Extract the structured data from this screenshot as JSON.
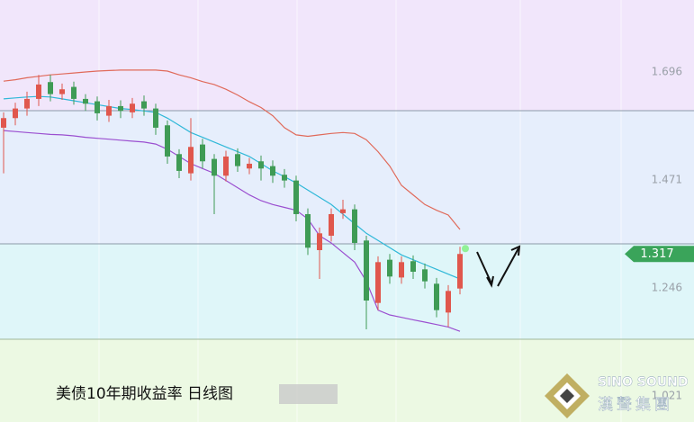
{
  "chart_data": {
    "type": "candlestick",
    "title": "美债10年期收益率 日线图",
    "open": [
      1.58,
      1.6,
      1.62,
      1.64,
      1.675,
      1.65,
      1.665,
      1.64,
      1.635,
      1.605,
      1.625,
      1.612,
      1.635,
      1.62,
      1.585,
      1.525,
      1.485,
      1.545,
      1.515,
      1.48,
      1.525,
      1.495,
      1.51,
      1.5,
      1.482,
      1.47,
      1.4,
      1.325,
      1.355,
      1.402,
      1.41,
      1.345,
      1.215,
      1.305,
      1.268,
      1.302,
      1.285,
      1.255,
      1.195,
      1.245
    ],
    "high": [
      1.612,
      1.632,
      1.655,
      1.69,
      1.69,
      1.672,
      1.676,
      1.65,
      1.645,
      1.638,
      1.637,
      1.642,
      1.647,
      1.63,
      1.595,
      1.535,
      1.6,
      1.557,
      1.525,
      1.532,
      1.537,
      1.517,
      1.522,
      1.512,
      1.494,
      1.48,
      1.412,
      1.372,
      1.412,
      1.43,
      1.42,
      1.355,
      1.312,
      1.317,
      1.312,
      1.314,
      1.297,
      1.267,
      1.252,
      1.332
    ],
    "low": [
      1.485,
      1.585,
      1.605,
      1.625,
      1.635,
      1.638,
      1.628,
      1.615,
      1.595,
      1.592,
      1.6,
      1.6,
      1.605,
      1.565,
      1.505,
      1.475,
      1.47,
      1.495,
      1.4,
      1.468,
      1.488,
      1.483,
      1.47,
      1.465,
      1.455,
      1.385,
      1.315,
      1.265,
      1.343,
      1.39,
      1.325,
      1.16,
      1.2,
      1.255,
      1.255,
      1.265,
      1.245,
      1.185,
      1.165,
      1.233
    ],
    "close": [
      1.6,
      1.62,
      1.64,
      1.67,
      1.65,
      1.66,
      1.64,
      1.63,
      1.61,
      1.625,
      1.615,
      1.63,
      1.62,
      1.58,
      1.52,
      1.49,
      1.54,
      1.51,
      1.48,
      1.52,
      1.5,
      1.505,
      1.495,
      1.48,
      1.47,
      1.4,
      1.33,
      1.36,
      1.4,
      1.41,
      1.34,
      1.22,
      1.3,
      1.27,
      1.3,
      1.28,
      1.26,
      1.2,
      1.24,
      1.317
    ],
    "up_color": "#e0574d",
    "down_color": "#3f9b55",
    "lines": [
      {
        "color": "#e06a5a",
        "values": [
          1.677,
          1.68,
          1.684,
          1.687,
          1.69,
          1.692,
          1.694,
          1.696,
          1.698,
          1.699,
          1.7,
          1.7,
          1.7,
          1.7,
          1.698,
          1.69,
          1.684,
          1.676,
          1.67,
          1.66,
          1.648,
          1.634,
          1.622,
          1.605,
          1.58,
          1.565,
          1.562,
          1.565,
          1.568,
          1.57,
          1.568,
          1.555,
          1.53,
          1.5,
          1.46,
          1.44,
          1.42,
          1.408,
          1.398,
          1.368
        ]
      },
      {
        "color": "#9b4fd0",
        "values": [
          1.574,
          1.572,
          1.57,
          1.568,
          1.566,
          1.565,
          1.563,
          1.56,
          1.558,
          1.556,
          1.554,
          1.552,
          1.55,
          1.546,
          1.535,
          1.52,
          1.505,
          1.495,
          1.485,
          1.47,
          1.455,
          1.44,
          1.428,
          1.42,
          1.414,
          1.408,
          1.39,
          1.355,
          1.34,
          1.32,
          1.3,
          1.26,
          1.2,
          1.19,
          1.185,
          1.18,
          1.175,
          1.17,
          1.165,
          1.156
        ]
      },
      {
        "color": "#2fb8d8",
        "values": [
          1.64,
          1.642,
          1.644,
          1.645,
          1.644,
          1.64,
          1.636,
          1.632,
          1.628,
          1.624,
          1.62,
          1.618,
          1.615,
          1.612,
          1.6,
          1.585,
          1.57,
          1.56,
          1.55,
          1.54,
          1.53,
          1.52,
          1.505,
          1.49,
          1.478,
          1.465,
          1.45,
          1.435,
          1.42,
          1.4,
          1.38,
          1.36,
          1.345,
          1.33,
          1.315,
          1.305,
          1.295,
          1.285,
          1.275,
          1.265
        ]
      }
    ],
    "ylim": [
      0.967,
      1.846
    ],
    "yticks": [
      1.021,
      1.246,
      1.471,
      1.696
    ],
    "last_price": 1.317,
    "watermark": {
      "brand": "SINO SOUND",
      "name": "漢聲集團"
    }
  }
}
